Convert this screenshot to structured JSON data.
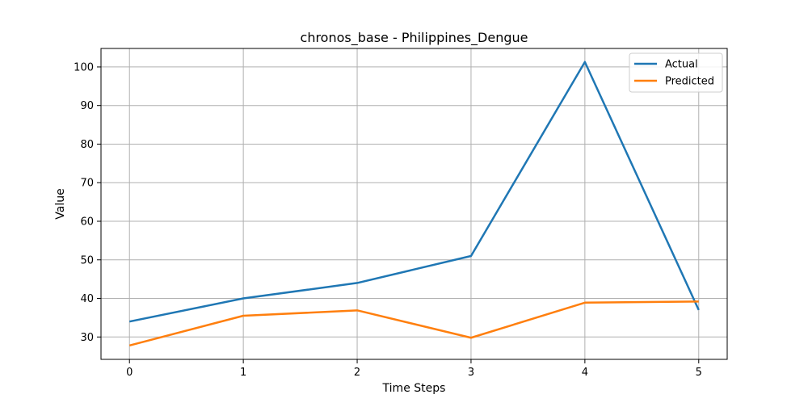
{
  "chart_data": {
    "type": "line",
    "title": "chronos_base - Philippines_Dengue",
    "xlabel": "Time Steps",
    "ylabel": "Value",
    "x": [
      0,
      1,
      2,
      3,
      4,
      5
    ],
    "xlim": [
      -0.25,
      5.25
    ],
    "ylim": [
      24.2,
      104.8
    ],
    "xticks": [
      0,
      1,
      2,
      3,
      4,
      5
    ],
    "yticks": [
      30,
      40,
      50,
      60,
      70,
      80,
      90,
      100
    ],
    "grid": true,
    "legend_position": "top-right",
    "series": [
      {
        "name": "Actual",
        "color": "#1f77b4",
        "values": [
          34.0,
          40.0,
          44.0,
          51.0,
          101.3,
          37.0
        ]
      },
      {
        "name": "Predicted",
        "color": "#ff7f0e",
        "values": [
          27.8,
          35.5,
          36.9,
          29.8,
          38.9,
          39.2
        ]
      }
    ]
  }
}
